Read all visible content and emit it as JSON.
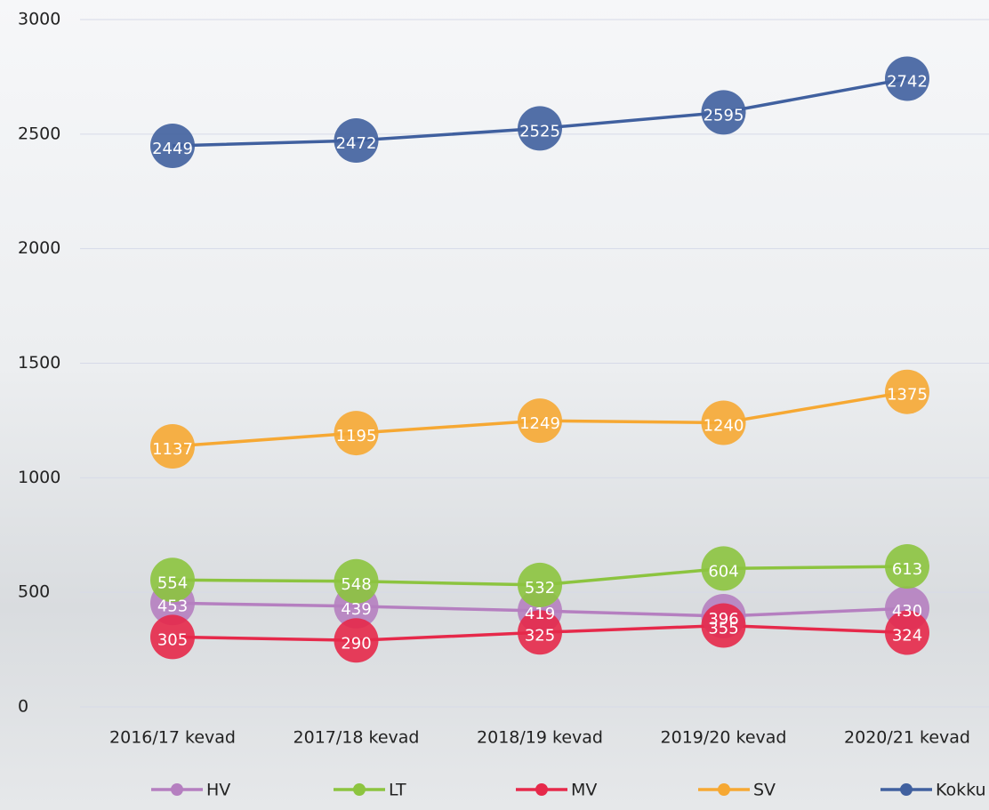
{
  "chart_data": {
    "type": "line",
    "categories": [
      "2016/17 kevad",
      "2017/18 kevad",
      "2018/19 kevad",
      "2019/20 kevad",
      "2020/21 kevad"
    ],
    "series": [
      {
        "name": "HV",
        "color": "#b57fc0",
        "values": [
          453,
          439,
          419,
          396,
          430
        ]
      },
      {
        "name": "LT",
        "color": "#8cc43f",
        "values": [
          554,
          548,
          532,
          604,
          613
        ]
      },
      {
        "name": "MV",
        "color": "#e6294a",
        "values": [
          305,
          290,
          325,
          355,
          324
        ]
      },
      {
        "name": "SV",
        "color": "#f6a833",
        "values": [
          1137,
          1195,
          1249,
          1240,
          1375
        ]
      },
      {
        "name": "Kokku",
        "color": "#40609f",
        "values": [
          2449,
          2472,
          2525,
          2595,
          2742
        ]
      }
    ],
    "ylim": [
      0,
      3000
    ],
    "yticks": [
      0,
      500,
      1000,
      1500,
      2000,
      2500,
      3000
    ],
    "grid": true,
    "legend": "bottom"
  }
}
